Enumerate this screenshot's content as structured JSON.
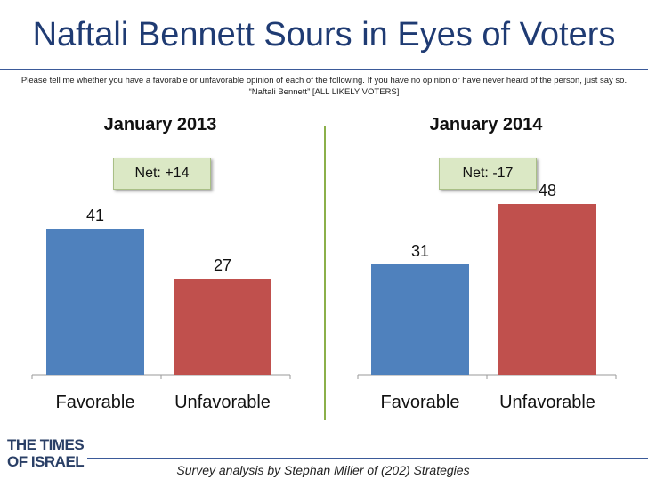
{
  "title": "Naftali Bennett Sours in Eyes of Voters",
  "subtitle": "Please tell me whether you have a favorable or unfavorable opinion of each of the following. If you have no opinion or have never heard of the person, just say so. “Naftali Bennett” [ALL LIKELY VOTERS]",
  "footer": "Survey analysis by Stephan Miller of (202) Strategies",
  "logo": {
    "line1": "THE TIMES",
    "line2": "OF ISRAEL"
  },
  "colors": {
    "favorable": "#4f81bd",
    "unfavorable": "#c0504d",
    "title": "#1f3b73",
    "net_box": "#dbe8c5",
    "divider": "#8bb04a"
  },
  "chart_data": [
    {
      "type": "bar",
      "title": "January 2013",
      "net_label": "Net: +14",
      "categories": [
        "Favorable",
        "Unfavorable"
      ],
      "values": [
        41,
        27
      ],
      "ylim": [
        0,
        55
      ]
    },
    {
      "type": "bar",
      "title": "January 2014",
      "net_label": "Net: -17",
      "categories": [
        "Favorable",
        "Unfavorable"
      ],
      "values": [
        31,
        48
      ],
      "ylim": [
        0,
        55
      ]
    }
  ]
}
